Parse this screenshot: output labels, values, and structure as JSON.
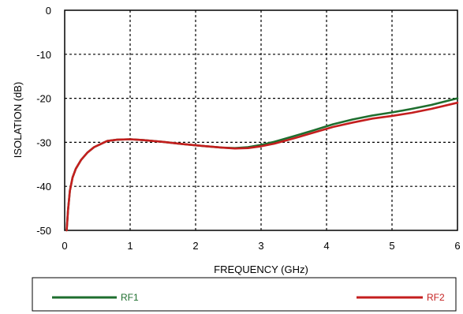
{
  "chart_data": {
    "type": "line",
    "title": "",
    "xlabel": "FREQUENCY (GHz)",
    "ylabel": "ISOLATION (dB)",
    "xlim": [
      0,
      6
    ],
    "ylim": [
      -50,
      0
    ],
    "x_ticks": [
      "0",
      "1",
      "2",
      "3",
      "4",
      "5",
      "6"
    ],
    "y_ticks": [
      "-50",
      "-40",
      "-30",
      "-20",
      "-10",
      "0"
    ],
    "grid": true,
    "legend_placement": "bottom",
    "series": [
      {
        "name": "RF1",
        "color": "#1e6e2e",
        "x": [
          0.03,
          0.05,
          0.08,
          0.12,
          0.17,
          0.25,
          0.35,
          0.45,
          0.55,
          0.65,
          0.8,
          1.0,
          1.2,
          1.5,
          1.8,
          2.1,
          2.4,
          2.6,
          2.8,
          3.0,
          3.2,
          3.5,
          3.8,
          4.1,
          4.4,
          4.7,
          5.0,
          5.3,
          5.6,
          6.0
        ],
        "y": [
          -50,
          -45.5,
          -41,
          -38,
          -36,
          -34,
          -32.3,
          -31.1,
          -30.4,
          -29.7,
          -29.4,
          -29.3,
          -29.5,
          -29.9,
          -30.4,
          -30.8,
          -31.2,
          -31.3,
          -31.1,
          -30.6,
          -29.9,
          -28.6,
          -27.3,
          -25.9,
          -24.8,
          -23.9,
          -23.2,
          -22.4,
          -21.5,
          -20.0
        ]
      },
      {
        "name": "RF2",
        "color": "#c41e1e",
        "x": [
          0.03,
          0.05,
          0.08,
          0.12,
          0.17,
          0.25,
          0.35,
          0.45,
          0.55,
          0.65,
          0.8,
          1.0,
          1.2,
          1.5,
          1.8,
          2.1,
          2.4,
          2.6,
          2.8,
          3.0,
          3.2,
          3.5,
          3.8,
          4.1,
          4.4,
          4.7,
          5.0,
          5.3,
          5.6,
          6.0
        ],
        "y": [
          -50,
          -45.5,
          -41,
          -38,
          -36,
          -34,
          -32.3,
          -31.1,
          -30.4,
          -29.7,
          -29.4,
          -29.3,
          -29.5,
          -29.9,
          -30.4,
          -30.8,
          -31.2,
          -31.4,
          -31.3,
          -30.9,
          -30.3,
          -29.1,
          -27.8,
          -26.5,
          -25.5,
          -24.6,
          -24.0,
          -23.3,
          -22.4,
          -21.0
        ]
      }
    ]
  }
}
